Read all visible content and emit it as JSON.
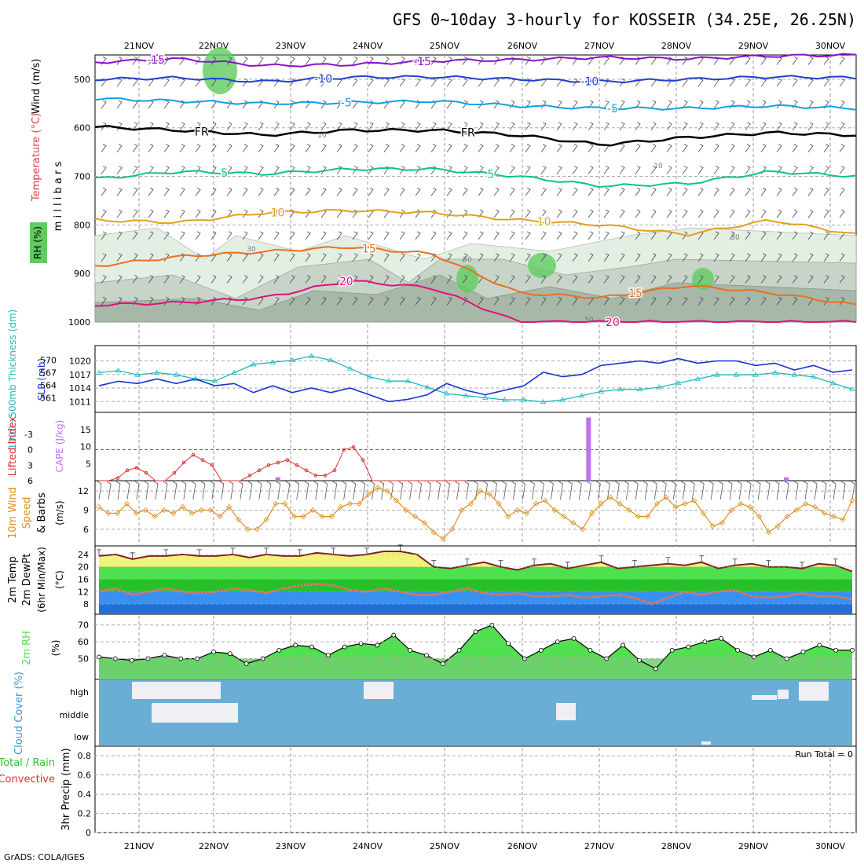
{
  "title": "GFS 0~10day 3-hourly for KOSSEIR (34.25E, 26.25N)",
  "footer": "GrADS: COLA/IGES",
  "colors": {
    "temp_violet": "#8b10c8",
    "temp_blue": "#2040d0",
    "temp_cyan": "#10a0e0",
    "temp_fr": "#000000",
    "temp_teal": "#10c090",
    "temp_gold": "#e0a020",
    "temp_orange": "#e87020",
    "temp_magenta": "#e01080",
    "rh_light": "#e4efe4",
    "rh_mid": "#c8d4c8",
    "rh_dark": "#a8b8a8",
    "rh_green": "#60cc60",
    "slp": "#1a32d0",
    "thickness": "#20b8c0",
    "li": "#e03030",
    "cape": "#c070f0",
    "wind": "#e09020",
    "tmax": "#802020",
    "band_yellow": "#f2f27a",
    "band_green": "#4ee04e",
    "band_dgreen": "#28c028",
    "band_lblue": "#3a90f0",
    "band_blue": "#2070d8",
    "dewpt": "#c04080",
    "rh2m": "#50e050",
    "rh2m_base": "#70cf70",
    "cloud_bg": "#6aaed6"
  },
  "chart_data": [
    {
      "type": "contour",
      "panel": "upper-air",
      "ylabel_left": "Wind (m/s)",
      "ylabel_mid": "Temperature (°C)",
      "ylabel_right": "m i l l i b a r s",
      "rh_legend": "RH (%)",
      "y_axis": {
        "label": "millibars",
        "ticks": [
          500,
          600,
          700,
          800,
          900,
          1000
        ],
        "ylim": [
          1000,
          450
        ]
      },
      "x_labels": [
        "21NOV",
        "22NOV",
        "23NOV",
        "24NOV",
        "25NOV",
        "26NOV",
        "27NOV",
        "28NOV",
        "29NOV",
        "30NOV"
      ],
      "isotherms": [
        {
          "label": "-15",
          "level_mb": [
            465,
            458,
            472,
            470,
            462,
            460,
            455,
            458,
            452,
            450
          ]
        },
        {
          "label": "-10",
          "level_mb": [
            500,
            497,
            505,
            496,
            495,
            500,
            505,
            500,
            495,
            497
          ]
        },
        {
          "label": "-5",
          "level_mb": [
            540,
            545,
            550,
            548,
            545,
            555,
            560,
            560,
            555,
            560
          ]
        },
        {
          "label": "FR",
          "level_mb": [
            598,
            605,
            615,
            605,
            605,
            615,
            635,
            620,
            610,
            615
          ]
        },
        {
          "label": "5",
          "level_mb": [
            705,
            690,
            695,
            685,
            685,
            700,
            720,
            715,
            690,
            700
          ]
        },
        {
          "label": "10",
          "level_mb": [
            790,
            795,
            775,
            770,
            775,
            790,
            800,
            820,
            790,
            820
          ]
        },
        {
          "label": "15",
          "level_mb": [
            885,
            865,
            855,
            845,
            860,
            940,
            950,
            925,
            940,
            965
          ]
        },
        {
          "label": "20",
          "level_mb": [
            965,
            960,
            950,
            915,
            930,
            1000,
            1000,
            1000,
            1000,
            1000
          ]
        }
      ],
      "rh_contour_labels": [
        "10",
        "30",
        "50"
      ]
    },
    {
      "type": "line",
      "panel": "slp-thickness",
      "ylabel_left": "1000~500mb Thickness (dm)",
      "ylabel_right": "SLP (mb)",
      "left_ticks": [
        561,
        564,
        567,
        570
      ],
      "right_ticks": [
        1011,
        1014,
        1017,
        1020
      ],
      "series": [
        {
          "name": "SLP (mb)",
          "values": [
            1014.5,
            1015.5,
            1015,
            1016,
            1015,
            1016,
            1014.5,
            1015,
            1013,
            1014.5,
            1013,
            1014,
            1013,
            1014,
            1012.5,
            1011,
            1011.5,
            1012.5,
            1015,
            1013.5,
            1012.5,
            1013.5,
            1014.5,
            1017.5,
            1016.5,
            1017,
            1019,
            1019.5,
            1020,
            1019.5,
            1020.5,
            1019.5,
            1020,
            1020,
            1019,
            1019.5,
            1018,
            1019,
            1017.5,
            1018
          ]
        },
        {
          "name": "1000~500mb Thickness (dm)",
          "values": [
            567,
            567.5,
            566.5,
            567,
            566.5,
            565.5,
            565,
            567,
            569,
            569.5,
            570,
            571,
            570,
            568,
            566,
            565,
            565,
            563.5,
            562,
            561.5,
            561,
            560.5,
            560.5,
            560,
            560.5,
            561.5,
            562.5,
            563,
            563,
            563.5,
            564.5,
            565.5,
            566.5,
            566.5,
            566.5,
            567,
            566.5,
            566,
            564.5,
            563
          ]
        }
      ]
    },
    {
      "type": "line",
      "panel": "lifted-index-cape",
      "ylabel_left": "Lifted Index",
      "ylabel_right": "CAPE (J/kg)",
      "left_ticks": [
        "-3",
        "0",
        "3",
        "6"
      ],
      "right_ticks": [
        "5",
        "10",
        "15"
      ],
      "series": [
        {
          "name": "Lifted Index",
          "values": [
            6,
            6,
            5.5,
            4,
            3.5,
            4.5,
            6,
            6,
            4.5,
            2.5,
            1,
            2,
            3,
            6,
            6,
            6,
            5,
            4,
            3,
            2.5,
            2,
            3,
            4,
            5,
            5,
            4,
            0,
            -0.5,
            2,
            6,
            6,
            6,
            6,
            6,
            6,
            6,
            6,
            6,
            6,
            6
          ]
        },
        {
          "name": "CAPE (J/kg)",
          "bars": [
            {
              "time_index": 19,
              "value": 1
            },
            {
              "time_index": 52,
              "value": 18.5
            },
            {
              "time_index": 73,
              "value": 1
            }
          ]
        }
      ]
    },
    {
      "type": "line",
      "panel": "10m-wind",
      "ylabel": "10m Wind Speed & Barbs (m/s)",
      "ylabel_left": "10m Wind",
      "ylabel_mid": "Speed",
      "ylabel_right": "& Barbs",
      "ylabel_unit": "(m/s)",
      "ticks": [
        6,
        9,
        12
      ],
      "series": [
        {
          "name": "Speed",
          "values": [
            9.5,
            8.5,
            8.5,
            10,
            8.5,
            9,
            8,
            9,
            8.5,
            9.5,
            8.5,
            9,
            9,
            8,
            9.5,
            7.5,
            6,
            6,
            7.5,
            10,
            10,
            8,
            8,
            9,
            8,
            8,
            9.5,
            10,
            10,
            11.5,
            12.5,
            12,
            10.5,
            9,
            8,
            7,
            5.5,
            4.5,
            6,
            9,
            10,
            12,
            11.5,
            10,
            8,
            9,
            8.5,
            10,
            10.5,
            9,
            8,
            7,
            6,
            8.5,
            10,
            11,
            10,
            9,
            8,
            8,
            10,
            11,
            9.5,
            10,
            10.5,
            8.5,
            6.5,
            7,
            9,
            10,
            9.5,
            8,
            5.5,
            6.5,
            8,
            9,
            10,
            9.5,
            8.5,
            8,
            7.5,
            10.5
          ]
        }
      ]
    },
    {
      "type": "area",
      "panel": "2m-temp",
      "ylabel": "2m Temp 2m DewPt (6hr Min/Max) (°C)",
      "ylabel_left": "2m Temp",
      "ylabel_mid": "2m DewPt",
      "ylabel_right": "(6hr Min/Max)",
      "ylabel_unit": "(°C)",
      "ticks": [
        8,
        12,
        16,
        20,
        24
      ],
      "series": [
        {
          "name": "2m Temp",
          "values": [
            23.5,
            24,
            22.5,
            23.5,
            23.5,
            24,
            23.5,
            23.5,
            24,
            23,
            24,
            23.5,
            23.5,
            24.5,
            24,
            23.5,
            24,
            25,
            25,
            24,
            20,
            19.5,
            20.5,
            21.5,
            20,
            19,
            20.5,
            21,
            19.5,
            20.5,
            21.5,
            19.5,
            20,
            20.5,
            21,
            20.5,
            21.5,
            19.5,
            20.5,
            21,
            20,
            20,
            19.5,
            21,
            20.5,
            18.5
          ]
        },
        {
          "name": "2m DewPt",
          "values": [
            12,
            13,
            11,
            12,
            13,
            12,
            11.5,
            12,
            13,
            12.5,
            11.5,
            13,
            14,
            14.5,
            14,
            12.5,
            12,
            13,
            12,
            11,
            11,
            12,
            13,
            11.5,
            11,
            11.5,
            10.5,
            10.5,
            11,
            10,
            10.5,
            11,
            10,
            8,
            10,
            12,
            11,
            12,
            12.5,
            10.5,
            10,
            10.5,
            11.5,
            10.5,
            10.5,
            9.5
          ]
        }
      ]
    },
    {
      "type": "area",
      "panel": "2m-rh",
      "ylabel": "2m RH",
      "ylabel_unit": "(%)",
      "ticks": [
        50,
        60,
        70
      ],
      "series": [
        {
          "name": "2m RH",
          "values": [
            51,
            50,
            49,
            50,
            52,
            50,
            50,
            54,
            53,
            47,
            50,
            55,
            58,
            57,
            52,
            57,
            59,
            58,
            64,
            55,
            52,
            47,
            55,
            66,
            70,
            59,
            50,
            55,
            60,
            62,
            55,
            50,
            58,
            49,
            44,
            55,
            57,
            60,
            62,
            55,
            51,
            55,
            50,
            54,
            58,
            55,
            55
          ]
        }
      ]
    },
    {
      "type": "heatmap",
      "panel": "cloud-cover",
      "ylabel": "Cloud Cover (%)",
      "levels": [
        "high",
        "middle",
        "low"
      ]
    },
    {
      "type": "bar",
      "panel": "precip",
      "ylabel": "3hr Precip (mm)",
      "ylabel_left": "Total / Rain",
      "ylabel_right": "Convective",
      "ticks": [
        "0",
        "0.2",
        "0.4",
        "0.6",
        "0.8"
      ],
      "run_total_label": "Run Total = 0",
      "values": []
    }
  ]
}
